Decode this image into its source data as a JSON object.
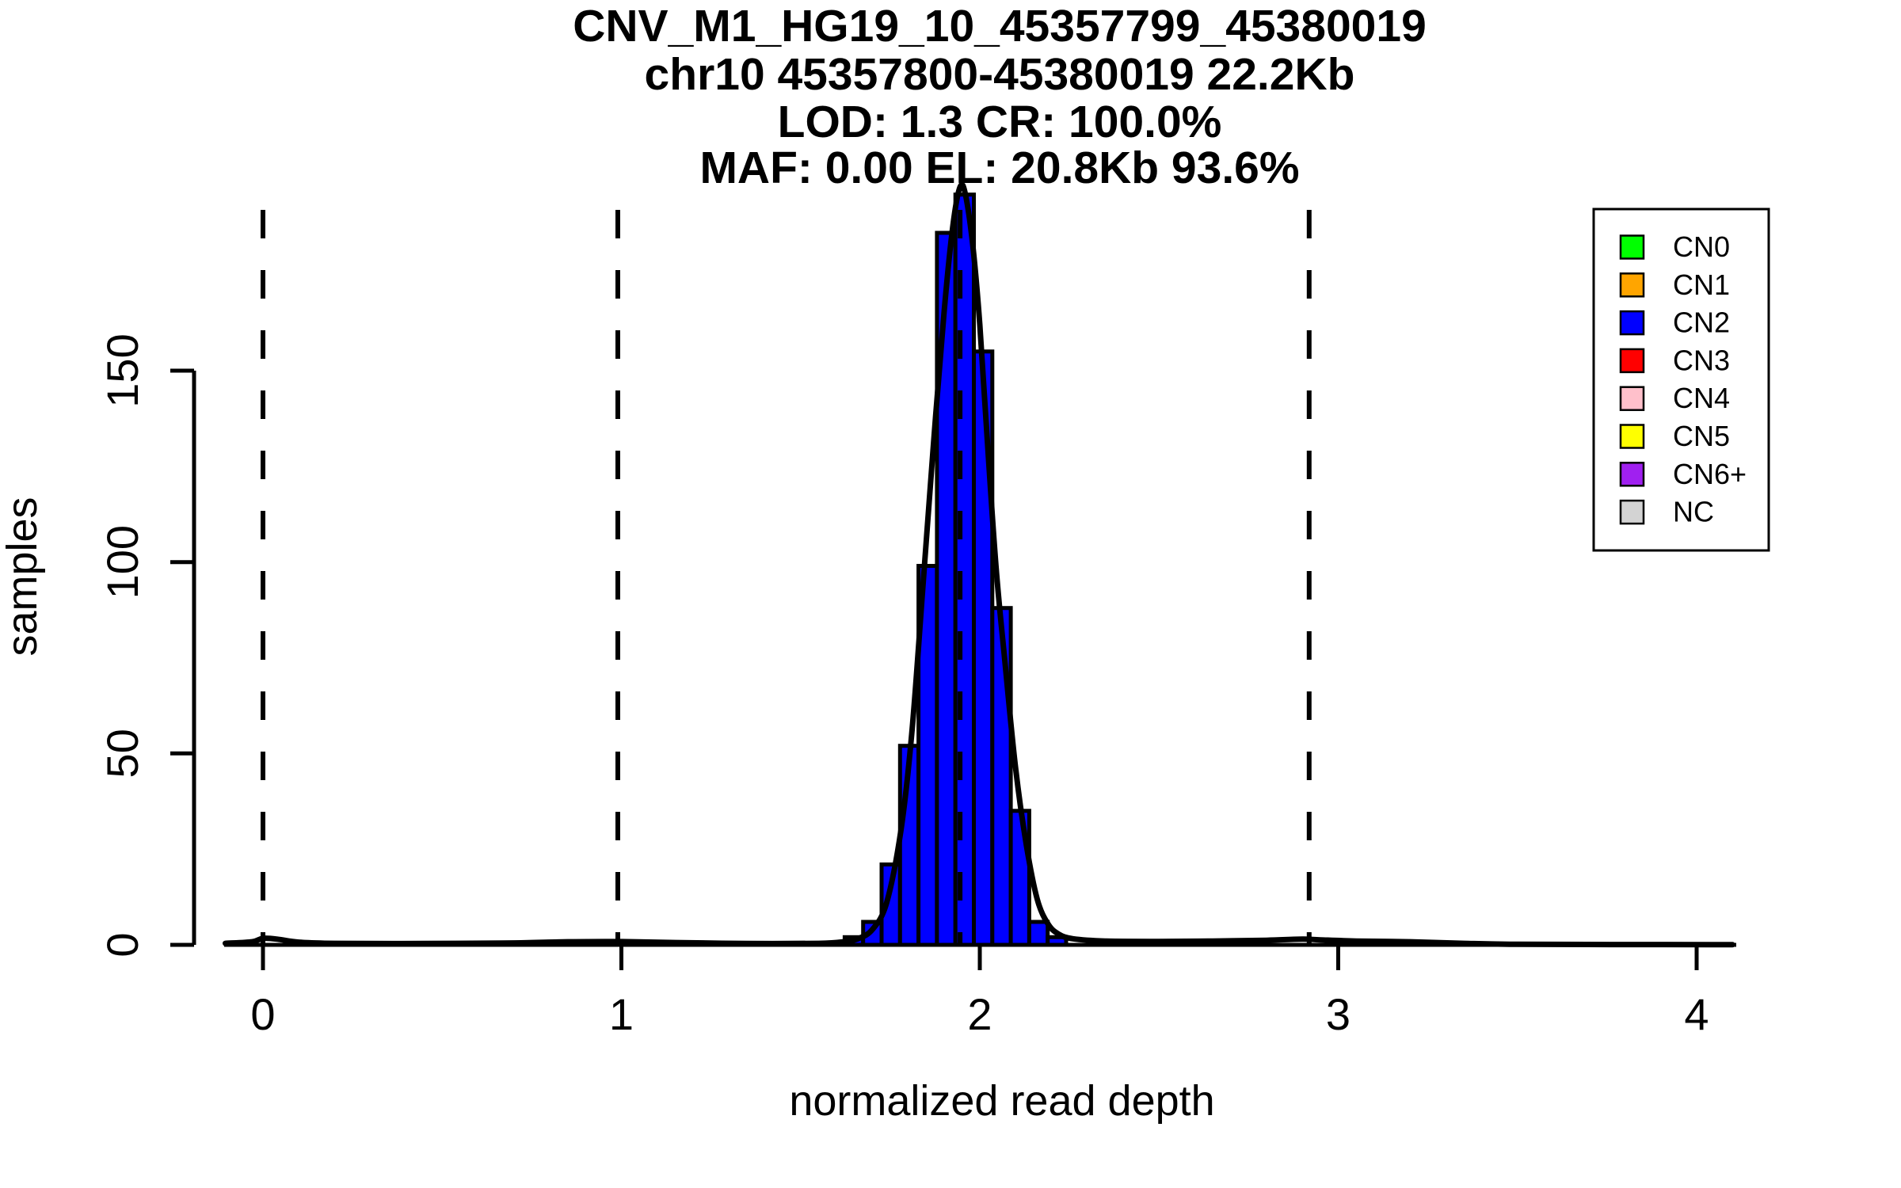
{
  "title_lines": [
    "CNV_M1_HG19_10_45357799_45380019",
    "chr10 45357800-45380019 22.2Kb",
    "LOD: 1.3 CR: 100.0%",
    "MAF: 0.00 EL: 20.8Kb 93.6%"
  ],
  "legend": {
    "items": [
      {
        "label": "CN0",
        "color": "#00FF00"
      },
      {
        "label": "CN1",
        "color": "#FFA500"
      },
      {
        "label": "CN2",
        "color": "#0000FF"
      },
      {
        "label": "CN3",
        "color": "#FF0000"
      },
      {
        "label": "CN4",
        "color": "#FFC0CB"
      },
      {
        "label": "CN5",
        "color": "#FFFF00"
      },
      {
        "label": "CN6+",
        "color": "#A020F0"
      },
      {
        "label": "NC",
        "color": "#D3D3D3"
      }
    ]
  },
  "chart_data": {
    "type": "bar",
    "subtype": "histogram-with-density",
    "title": "CNV_M1_HG19_10_45357799_45380019",
    "xlabel": "normalized read depth",
    "ylabel": "samples",
    "x_ticks": [
      0,
      1,
      2,
      3,
      4
    ],
    "y_ticks": [
      0,
      50,
      100,
      150
    ],
    "xlim": [
      -0.11,
      4.11
    ],
    "ylim": [
      0,
      204
    ],
    "grid": false,
    "legend_position": "top-right",
    "bar_color": "#0000FF",
    "bar_border_color": "#000000",
    "breaks": [
      1.623,
      1.6745,
      1.726,
      1.7775,
      1.829,
      1.8805,
      1.932,
      1.9835,
      2.035,
      2.0865,
      2.138,
      2.1895,
      2.241
    ],
    "counts": [
      2,
      6,
      21,
      52,
      99,
      186,
      196,
      155,
      88,
      35,
      6,
      2
    ],
    "dashed_lines_x": [
      0,
      0.99,
      1.945,
      2.919
    ],
    "density_curve": [
      [
        -0.105,
        0.4
      ],
      [
        -0.03,
        0.8
      ],
      [
        0,
        1.7
      ],
      [
        0.04,
        1.5
      ],
      [
        0.1,
        0.7
      ],
      [
        0.2,
        0.4
      ],
      [
        0.45,
        0.35
      ],
      [
        0.7,
        0.5
      ],
      [
        0.85,
        0.8
      ],
      [
        1,
        0.85
      ],
      [
        1.15,
        0.6
      ],
      [
        1.35,
        0.35
      ],
      [
        1.55,
        0.4
      ],
      [
        1.62,
        0.8
      ],
      [
        1.66,
        1.6
      ],
      [
        1.7,
        4
      ],
      [
        1.74,
        11
      ],
      [
        1.78,
        30
      ],
      [
        1.81,
        55
      ],
      [
        1.84,
        92
      ],
      [
        1.87,
        130
      ],
      [
        1.9,
        165
      ],
      [
        1.925,
        188
      ],
      [
        1.945,
        198
      ],
      [
        1.96,
        196
      ],
      [
        1.98,
        183
      ],
      [
        2,
        162
      ],
      [
        2.02,
        133
      ],
      [
        2.045,
        99
      ],
      [
        2.07,
        74
      ],
      [
        2.1,
        46
      ],
      [
        2.13,
        26
      ],
      [
        2.16,
        12
      ],
      [
        2.19,
        5.5
      ],
      [
        2.22,
        2.8
      ],
      [
        2.26,
        1.6
      ],
      [
        2.35,
        1
      ],
      [
        2.5,
        0.9
      ],
      [
        2.65,
        1
      ],
      [
        2.8,
        1.2
      ],
      [
        2.9,
        1.5
      ],
      [
        2.95,
        1.3
      ],
      [
        3.05,
        1
      ],
      [
        3.2,
        0.8
      ],
      [
        3.35,
        0.4
      ],
      [
        3.5,
        0.15
      ],
      [
        3.8,
        0.08
      ],
      [
        4.1,
        0.05
      ]
    ]
  }
}
